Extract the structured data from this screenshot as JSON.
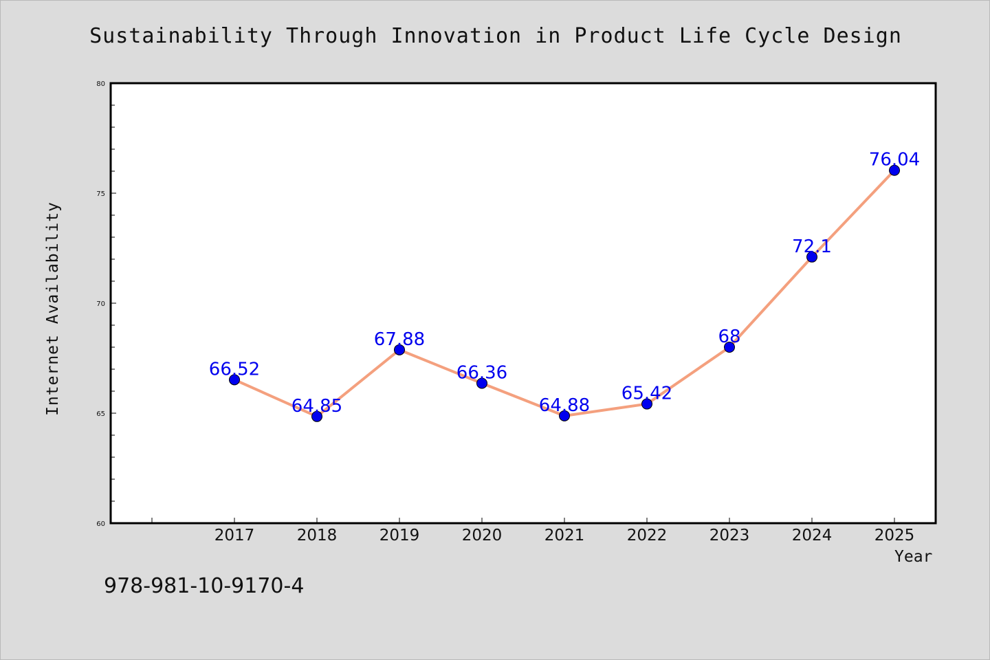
{
  "chart_data": {
    "type": "line",
    "title": "Sustainability Through Innovation in Product Life Cycle Design",
    "xlabel": "Year",
    "ylabel": "Internet Availability",
    "categories": [
      "2017",
      "2018",
      "2019",
      "2020",
      "2021",
      "2022",
      "2023",
      "2024",
      "2025"
    ],
    "values": [
      66.52,
      64.85,
      67.88,
      66.36,
      64.88,
      65.42,
      68,
      72.1,
      76.04
    ],
    "data_labels": [
      "66.52",
      "64.85",
      "67.88",
      "66.36",
      "64.88",
      "65.42",
      "68",
      "72.1",
      "76.04"
    ],
    "ylim": [
      60,
      80
    ],
    "yticks": [
      "60",
      "65",
      "70",
      "75",
      "80"
    ],
    "grid": false,
    "line_color": "#f4a07e",
    "marker_color": "#0000ee"
  },
  "annotation": "978-981-10-9170-4"
}
